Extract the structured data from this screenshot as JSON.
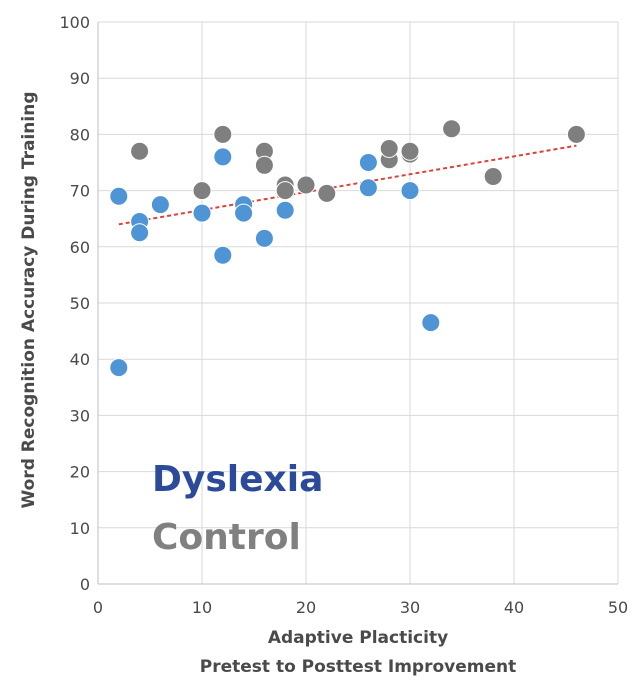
{
  "chart_data": {
    "type": "scatter",
    "title": "",
    "xlabel": [
      "Adaptive Placticity",
      "Pretest to Posttest Improvement"
    ],
    "ylabel": "Word Recognition  Accuracy  During Training",
    "xlim": [
      0,
      50
    ],
    "ylim": [
      0,
      100
    ],
    "x_ticks": [
      0,
      10,
      20,
      30,
      40,
      50
    ],
    "y_ticks": [
      0,
      10,
      20,
      30,
      40,
      50,
      60,
      70,
      80,
      90,
      100
    ],
    "grid": true,
    "legend_placement": "bottom-left",
    "series": [
      {
        "name": "Dyslexia",
        "color": "#4f94d4",
        "label_color": "#2b4a9a",
        "points": [
          [
            2,
            38.5
          ],
          [
            2,
            69
          ],
          [
            4,
            64.5
          ],
          [
            4,
            62.5
          ],
          [
            6,
            67.5
          ],
          [
            10,
            66
          ],
          [
            12,
            76
          ],
          [
            12,
            58.5
          ],
          [
            14,
            67.5
          ],
          [
            14,
            66
          ],
          [
            16,
            61.5
          ],
          [
            18,
            66.5
          ],
          [
            26,
            75
          ],
          [
            26,
            70.5
          ],
          [
            30,
            70
          ],
          [
            32,
            46.5
          ]
        ]
      },
      {
        "name": "Control",
        "color": "#7f7f7f",
        "label_color": "#808080",
        "points": [
          [
            4,
            77
          ],
          [
            10,
            70
          ],
          [
            12,
            80
          ],
          [
            16,
            77
          ],
          [
            16,
            74.5
          ],
          [
            18,
            71
          ],
          [
            18,
            70
          ],
          [
            20,
            71
          ],
          [
            22,
            69.5
          ],
          [
            28,
            75.5
          ],
          [
            28,
            77.5
          ],
          [
            30,
            76.5
          ],
          [
            30,
            77
          ],
          [
            34,
            81
          ],
          [
            38,
            72.5
          ],
          [
            46,
            80
          ]
        ]
      }
    ],
    "trendline": {
      "style": "dashed",
      "color": "#e0403a",
      "x": [
        2,
        46
      ],
      "y": [
        64,
        78
      ]
    }
  }
}
